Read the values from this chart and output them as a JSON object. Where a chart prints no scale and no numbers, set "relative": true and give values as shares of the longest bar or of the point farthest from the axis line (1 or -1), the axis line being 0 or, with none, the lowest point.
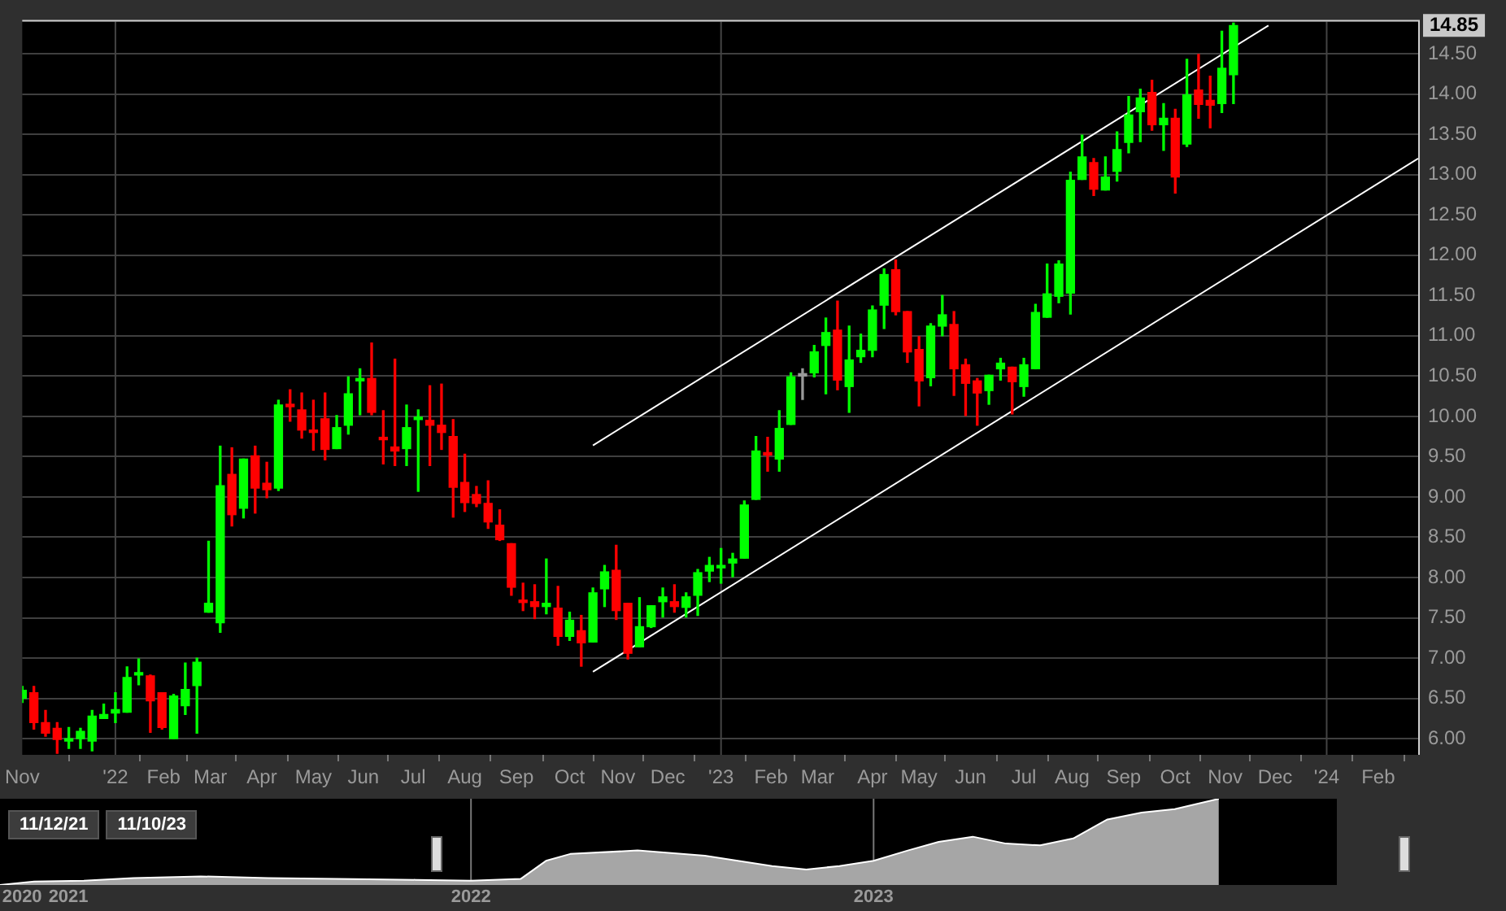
{
  "chart_data": [
    {
      "type": "candlestick",
      "x": [
        "2021-11-08",
        "2021-11-15",
        "2021-11-22",
        "2021-11-29",
        "2021-12-06",
        "2021-12-13",
        "2021-12-20",
        "2021-12-27",
        "2022-01-03",
        "2022-01-10",
        "2022-01-17",
        "2022-01-24",
        "2022-01-31",
        "2022-02-07",
        "2022-02-14",
        "2022-02-21",
        "2022-02-28",
        "2022-03-07",
        "2022-03-14",
        "2022-03-21",
        "2022-03-28",
        "2022-04-04",
        "2022-04-11",
        "2022-04-18",
        "2022-04-25",
        "2022-05-02",
        "2022-05-09",
        "2022-05-16",
        "2022-05-23",
        "2022-05-30",
        "2022-06-06",
        "2022-06-13",
        "2022-06-20",
        "2022-06-27",
        "2022-07-04",
        "2022-07-11",
        "2022-07-18",
        "2022-07-25",
        "2022-08-01",
        "2022-08-08",
        "2022-08-15",
        "2022-08-22",
        "2022-08-29",
        "2022-09-05",
        "2022-09-12",
        "2022-09-19",
        "2022-09-26",
        "2022-10-03",
        "2022-10-10",
        "2022-10-17",
        "2022-10-24",
        "2022-10-31",
        "2022-11-07",
        "2022-11-14",
        "2022-11-21",
        "2022-11-28",
        "2022-12-05",
        "2022-12-12",
        "2022-12-19",
        "2022-12-26",
        "2023-01-02",
        "2023-01-09",
        "2023-01-16",
        "2023-01-23",
        "2023-01-30",
        "2023-02-06",
        "2023-02-13",
        "2023-02-20",
        "2023-02-27",
        "2023-03-06",
        "2023-03-13",
        "2023-03-20",
        "2023-03-27",
        "2023-04-03",
        "2023-04-10",
        "2023-04-17",
        "2023-04-24",
        "2023-05-01",
        "2023-05-08",
        "2023-05-15",
        "2023-05-22",
        "2023-05-29",
        "2023-06-05",
        "2023-06-12",
        "2023-06-19",
        "2023-06-26",
        "2023-07-03",
        "2023-07-10",
        "2023-07-17",
        "2023-07-24",
        "2023-07-31",
        "2023-08-07",
        "2023-08-14",
        "2023-08-21",
        "2023-08-28",
        "2023-09-04",
        "2023-09-11",
        "2023-09-18",
        "2023-09-25",
        "2023-10-02",
        "2023-10-09",
        "2023-10-16",
        "2023-10-23",
        "2023-10-30",
        "2023-11-06"
      ],
      "ohlc": [
        [
          6.5,
          6.65,
          6.45,
          6.6
        ],
        [
          6.57,
          6.65,
          6.12,
          6.2
        ],
        [
          6.2,
          6.35,
          6.03,
          6.07
        ],
        [
          6.13,
          6.2,
          5.82,
          5.99
        ],
        [
          5.97,
          6.14,
          5.88,
          6.0
        ],
        [
          6.0,
          6.13,
          5.88,
          6.09
        ],
        [
          5.97,
          6.35,
          5.85,
          6.28
        ],
        [
          6.25,
          6.43,
          6.25,
          6.3
        ],
        [
          6.32,
          6.57,
          6.2,
          6.36
        ],
        [
          6.33,
          6.89,
          6.33,
          6.76
        ],
        [
          6.79,
          6.99,
          6.67,
          6.81
        ],
        [
          6.78,
          6.79,
          6.08,
          6.47
        ],
        [
          6.57,
          6.57,
          6.12,
          6.14
        ],
        [
          6.0,
          6.55,
          6.0,
          6.53
        ],
        [
          6.41,
          6.94,
          6.3,
          6.61
        ],
        [
          6.66,
          7.0,
          6.07,
          6.95
        ],
        [
          7.57,
          8.45,
          7.57,
          7.68
        ],
        [
          7.44,
          9.63,
          7.32,
          9.14
        ],
        [
          9.28,
          9.61,
          8.64,
          8.78
        ],
        [
          8.86,
          9.47,
          8.74,
          9.47
        ],
        [
          9.51,
          9.63,
          8.8,
          9.11
        ],
        [
          9.17,
          9.43,
          8.99,
          9.09
        ],
        [
          9.11,
          10.2,
          9.08,
          10.14
        ],
        [
          10.13,
          10.33,
          9.94,
          10.12
        ],
        [
          10.08,
          10.29,
          9.73,
          9.83
        ],
        [
          9.81,
          10.2,
          9.58,
          9.8
        ],
        [
          9.97,
          10.29,
          9.46,
          9.59
        ],
        [
          9.6,
          10.01,
          9.6,
          9.86
        ],
        [
          9.89,
          10.49,
          9.78,
          10.28
        ],
        [
          10.44,
          10.59,
          10.02,
          10.45
        ],
        [
          10.47,
          10.91,
          10.02,
          10.05
        ],
        [
          9.72,
          10.07,
          9.41,
          9.71
        ],
        [
          9.62,
          10.71,
          9.39,
          9.57
        ],
        [
          9.6,
          10.14,
          9.39,
          9.86
        ],
        [
          9.96,
          10.08,
          9.07,
          9.97
        ],
        [
          9.95,
          10.38,
          9.39,
          9.89
        ],
        [
          9.89,
          10.4,
          9.59,
          9.8
        ],
        [
          9.75,
          9.96,
          8.75,
          9.12
        ],
        [
          9.18,
          9.53,
          8.82,
          8.93
        ],
        [
          9.03,
          9.13,
          8.88,
          8.92
        ],
        [
          8.92,
          9.2,
          8.61,
          8.69
        ],
        [
          8.65,
          8.84,
          8.46,
          8.47
        ],
        [
          8.42,
          8.42,
          7.78,
          7.88
        ],
        [
          7.7,
          7.93,
          7.59,
          7.69
        ],
        [
          7.7,
          7.91,
          7.49,
          7.64
        ],
        [
          7.64,
          8.23,
          7.55,
          7.68
        ],
        [
          7.62,
          7.89,
          7.16,
          7.27
        ],
        [
          7.27,
          7.57,
          7.22,
          7.47
        ],
        [
          7.34,
          7.53,
          6.9,
          7.19
        ],
        [
          7.2,
          7.87,
          7.2,
          7.81
        ],
        [
          7.86,
          8.15,
          7.64,
          8.07
        ],
        [
          8.09,
          8.4,
          7.48,
          7.59
        ],
        [
          7.68,
          7.68,
          6.99,
          7.06
        ],
        [
          7.14,
          7.75,
          7.14,
          7.39
        ],
        [
          7.39,
          7.65,
          7.38,
          7.65
        ],
        [
          7.7,
          7.87,
          7.51,
          7.76
        ],
        [
          7.7,
          7.91,
          7.57,
          7.64
        ],
        [
          7.63,
          7.81,
          7.51,
          7.76
        ],
        [
          7.78,
          8.1,
          7.53,
          8.06
        ],
        [
          8.08,
          8.25,
          7.95,
          8.15
        ],
        [
          8.12,
          8.36,
          7.93,
          8.13
        ],
        [
          8.18,
          8.3,
          8.01,
          8.23
        ],
        [
          8.24,
          8.95,
          8.24,
          8.9
        ],
        [
          8.97,
          9.75,
          8.97,
          9.57
        ],
        [
          9.53,
          9.74,
          9.32,
          9.52
        ],
        [
          9.47,
          10.07,
          9.32,
          9.85
        ],
        [
          9.9,
          10.54,
          9.9,
          10.49
        ],
        [
          10.5,
          10.59,
          10.21,
          10.52
        ],
        [
          10.54,
          10.88,
          10.49,
          10.8
        ],
        [
          10.88,
          11.22,
          10.28,
          11.04
        ],
        [
          11.07,
          11.43,
          10.33,
          10.45
        ],
        [
          10.37,
          11.12,
          10.05,
          10.7
        ],
        [
          10.74,
          11.02,
          10.67,
          10.82
        ],
        [
          10.82,
          11.37,
          10.74,
          11.32
        ],
        [
          11.38,
          11.83,
          11.09,
          11.76
        ],
        [
          11.82,
          11.94,
          11.26,
          11.3
        ],
        [
          11.3,
          11.3,
          10.67,
          10.8
        ],
        [
          10.83,
          10.99,
          10.13,
          10.44
        ],
        [
          10.48,
          11.15,
          10.38,
          11.12
        ],
        [
          11.12,
          11.5,
          11.0,
          11.26
        ],
        [
          11.14,
          11.3,
          10.26,
          10.59
        ],
        [
          10.64,
          10.71,
          10.01,
          10.41
        ],
        [
          10.44,
          10.47,
          9.89,
          10.29
        ],
        [
          10.32,
          10.51,
          10.15,
          10.51
        ],
        [
          10.59,
          10.72,
          10.45,
          10.66
        ],
        [
          10.61,
          10.61,
          10.03,
          10.43
        ],
        [
          10.37,
          10.72,
          10.25,
          10.64
        ],
        [
          10.59,
          11.39,
          10.59,
          11.29
        ],
        [
          11.23,
          11.89,
          11.23,
          11.52
        ],
        [
          11.49,
          11.93,
          11.41,
          11.89
        ],
        [
          11.53,
          13.03,
          11.27,
          12.93
        ],
        [
          12.94,
          13.49,
          12.94,
          13.22
        ],
        [
          13.15,
          13.2,
          12.74,
          12.82
        ],
        [
          12.81,
          13.22,
          12.81,
          12.97
        ],
        [
          13.04,
          13.53,
          12.92,
          13.31
        ],
        [
          13.4,
          13.97,
          13.27,
          13.74
        ],
        [
          13.78,
          14.06,
          13.41,
          13.95
        ],
        [
          14.02,
          14.17,
          13.55,
          13.62
        ],
        [
          13.62,
          13.88,
          13.3,
          13.7
        ],
        [
          13.7,
          13.81,
          12.77,
          12.97
        ],
        [
          13.38,
          14.43,
          13.35,
          13.99
        ],
        [
          14.05,
          14.49,
          13.7,
          13.87
        ],
        [
          13.92,
          14.22,
          13.58,
          13.86
        ],
        [
          13.88,
          14.78,
          13.77,
          14.32
        ],
        [
          14.24,
          14.88,
          13.88,
          14.85
        ]
      ],
      "colors": [
        "#00ff00",
        "#ff0000",
        "#ff0000",
        "#ff0000",
        "#00ff00",
        "#00ff00",
        "#00ff00",
        "#00ff00",
        "#00ff00",
        "#00ff00",
        "#00ff00",
        "#ff0000",
        "#ff0000",
        "#00ff00",
        "#00ff00",
        "#00ff00",
        "#00ff00",
        "#00ff00",
        "#ff0000",
        "#00ff00",
        "#ff0000",
        "#ff0000",
        "#00ff00",
        "#ff0000",
        "#ff0000",
        "#ff0000",
        "#ff0000",
        "#00ff00",
        "#00ff00",
        "#00ff00",
        "#ff0000",
        "#ff0000",
        "#ff0000",
        "#00ff00",
        "#00ff00",
        "#ff0000",
        "#ff0000",
        "#ff0000",
        "#ff0000",
        "#ff0000",
        "#ff0000",
        "#ff0000",
        "#ff0000",
        "#ff0000",
        "#ff0000",
        "#00ff00",
        "#ff0000",
        "#00ff00",
        "#ff0000",
        "#00ff00",
        "#00ff00",
        "#ff0000",
        "#ff0000",
        "#00ff00",
        "#00ff00",
        "#00ff00",
        "#ff0000",
        "#00ff00",
        "#00ff00",
        "#00ff00",
        "#00ff00",
        "#00ff00",
        "#00ff00",
        "#00ff00",
        "#ff0000",
        "#00ff00",
        "#00ff00",
        "#999999",
        "#00ff00",
        "#00ff00",
        "#ff0000",
        "#00ff00",
        "#00ff00",
        "#00ff00",
        "#00ff00",
        "#ff0000",
        "#ff0000",
        "#ff0000",
        "#00ff00",
        "#00ff00",
        "#ff0000",
        "#ff0000",
        "#ff0000",
        "#00ff00",
        "#00ff00",
        "#ff0000",
        "#00ff00",
        "#00ff00",
        "#00ff00",
        "#00ff00",
        "#00ff00",
        "#00ff00",
        "#ff0000",
        "#00ff00",
        "#00ff00",
        "#00ff00",
        "#00ff00",
        "#ff0000",
        "#00ff00",
        "#ff0000",
        "#00ff00",
        "#ff0000",
        "#ff0000",
        "#00ff00",
        "#00ff00"
      ],
      "series": [
        {
          "type": "line",
          "color": "#ffffff",
          "x": [
            "2022-10-17",
            "2023-11-27"
          ],
          "values": [
            9.64,
            14.85
          ]
        },
        {
          "type": "line",
          "color": "#ffffff",
          "x": [
            "2022-10-17",
            "2024-02-25"
          ],
          "values": [
            6.83,
            13.2
          ]
        }
      ],
      "xlim": [
        "2021-11-08",
        "2024-02-25"
      ],
      "xticks": [
        {
          "value": "2021-11-08",
          "label": "Nov"
        },
        {
          "value": "2022-01-03",
          "label": "'22"
        },
        {
          "value": "2022-02-01",
          "label": "Feb"
        },
        {
          "value": "2022-03-01",
          "label": "Mar"
        },
        {
          "value": "2022-04-01",
          "label": "Apr"
        },
        {
          "value": "2022-05-02",
          "label": "May"
        },
        {
          "value": "2022-06-01",
          "label": "Jun"
        },
        {
          "value": "2022-07-01",
          "label": "Jul"
        },
        {
          "value": "2022-08-01",
          "label": "Aug"
        },
        {
          "value": "2022-09-01",
          "label": "Sep"
        },
        {
          "value": "2022-10-03",
          "label": "Oct"
        },
        {
          "value": "2022-11-01",
          "label": "Nov"
        },
        {
          "value": "2022-12-01",
          "label": "Dec"
        },
        {
          "value": "2023-01-02",
          "label": "'23"
        },
        {
          "value": "2023-02-01",
          "label": "Feb"
        },
        {
          "value": "2023-03-01",
          "label": "Mar"
        },
        {
          "value": "2023-04-03",
          "label": "Apr"
        },
        {
          "value": "2023-05-01",
          "label": "May"
        },
        {
          "value": "2023-06-01",
          "label": "Jun"
        },
        {
          "value": "2023-07-03",
          "label": "Jul"
        },
        {
          "value": "2023-08-01",
          "label": "Aug"
        },
        {
          "value": "2023-09-01",
          "label": "Sep"
        },
        {
          "value": "2023-10-02",
          "label": "Oct"
        },
        {
          "value": "2023-11-01",
          "label": "Nov"
        },
        {
          "value": "2023-12-01",
          "label": "Dec"
        },
        {
          "value": "2024-01-01",
          "label": "'24"
        },
        {
          "value": "2024-02-01",
          "label": "Feb"
        }
      ],
      "ylim": [
        5.8,
        14.9
      ],
      "yticks": [
        {
          "value": 6,
          "label": "6.00"
        },
        {
          "value": 6.5,
          "label": "6.50"
        },
        {
          "value": 7,
          "label": "7.00"
        },
        {
          "value": 7.5,
          "label": "7.50"
        },
        {
          "value": 8,
          "label": "8.00"
        },
        {
          "value": 8.5,
          "label": "8.50"
        },
        {
          "value": 9,
          "label": "9.00"
        },
        {
          "value": 9.5,
          "label": "9.50"
        },
        {
          "value": 10,
          "label": "10.00"
        },
        {
          "value": 10.5,
          "label": "10.50"
        },
        {
          "value": 11,
          "label": "11.00"
        },
        {
          "value": 11.5,
          "label": "11.50"
        },
        {
          "value": 12,
          "label": "12.00"
        },
        {
          "value": 12.5,
          "label": "12.50"
        },
        {
          "value": 13,
          "label": "13.00"
        },
        {
          "value": 13.5,
          "label": "13.50"
        },
        {
          "value": 14,
          "label": "14.00"
        },
        {
          "value": 14.5,
          "label": "14.50"
        }
      ],
      "grid": "y",
      "ref_lines": [
        {
          "axis": "x",
          "value": "2022-01-03",
          "color": "#444444"
        },
        {
          "axis": "x",
          "value": "2023-01-02",
          "color": "#444444"
        },
        {
          "axis": "x",
          "value": "2024-01-01",
          "color": "#444444"
        }
      ],
      "annotations": [
        {
          "text": "14.85",
          "y": 14.85
        }
      ]
    },
    {
      "type": "area",
      "relative": true,
      "color": "#a6a6a6",
      "x": [
        "2020-10-31",
        "2020-12-01",
        "2021-01-15",
        "2021-03-01",
        "2021-05-01",
        "2021-07-01",
        "2021-09-01",
        "2021-11-12",
        "2022-01-01",
        "2022-02-15",
        "2022-03-10",
        "2022-04-01",
        "2022-06-01",
        "2022-08-01",
        "2022-10-01",
        "2022-11-01",
        "2022-12-01",
        "2023-01-01",
        "2023-02-01",
        "2023-03-01",
        "2023-04-01",
        "2023-05-01",
        "2023-06-01",
        "2023-07-01",
        "2023-08-01",
        "2023-09-01",
        "2023-10-01",
        "2023-11-10"
      ],
      "values": [
        0,
        0.04,
        0.05,
        0.08,
        0.1,
        0.08,
        0.07,
        0.06,
        0.05,
        0.07,
        0.28,
        0.36,
        0.4,
        0.34,
        0.22,
        0.18,
        0.22,
        0.28,
        0.4,
        0.5,
        0.56,
        0.48,
        0.46,
        0.54,
        0.76,
        0.84,
        0.88,
        1
      ],
      "xlim": [
        "2020-10-31",
        "2024-02-25"
      ],
      "xticks": [
        {
          "value": "2020-11-20",
          "label": "2020"
        },
        {
          "value": "2021-01-01",
          "label": "2021"
        },
        {
          "value": "2022-01-01",
          "label": "2022"
        },
        {
          "value": "2023-01-01",
          "label": "2023"
        }
      ],
      "ref_lines": [
        {
          "axis": "x",
          "value": "2022-01-01",
          "color": "#777777"
        },
        {
          "axis": "x",
          "value": "2023-01-01",
          "color": "#777777"
        }
      ],
      "annotations": [
        "11/12/21",
        "11/10/23"
      ]
    }
  ]
}
